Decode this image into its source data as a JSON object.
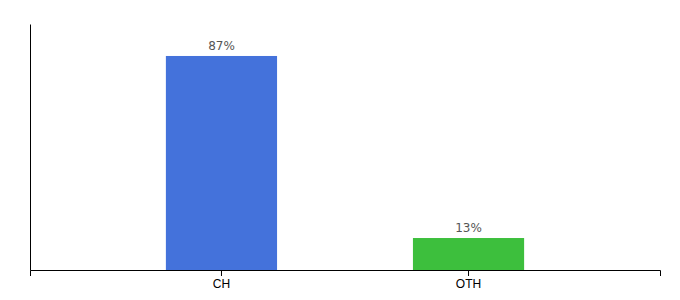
{
  "chart_data": {
    "type": "bar",
    "categories": [
      "CH",
      "OTH"
    ],
    "values": [
      87,
      13
    ],
    "value_labels": [
      "87%",
      "13%"
    ],
    "colors": [
      "#4472db",
      "#3dbf3d"
    ],
    "ylim": [
      0,
      100
    ],
    "yticks": [],
    "data_labels": true,
    "tick_labels": "x",
    "grid": false
  }
}
